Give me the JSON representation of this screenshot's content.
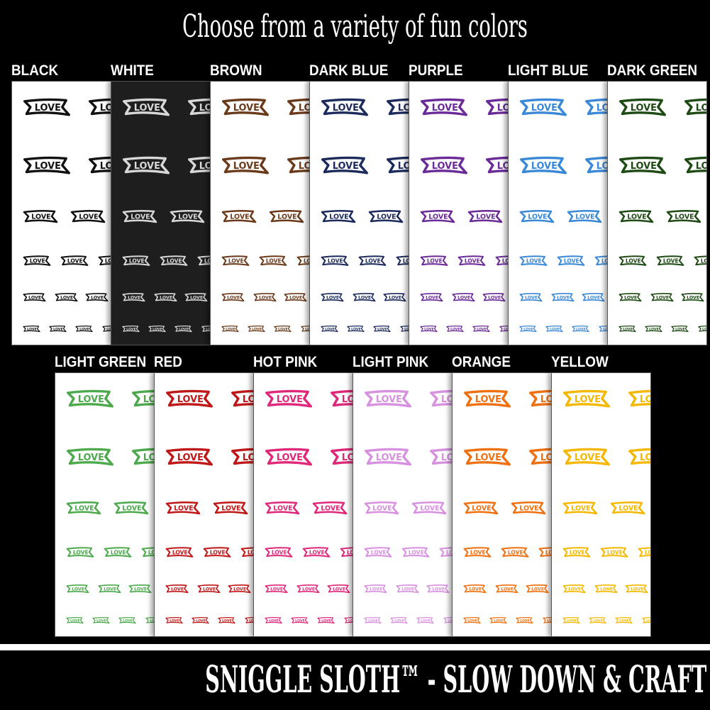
{
  "header": {
    "title": "Choose from a variety of fun colors"
  },
  "banner_text": "LOVE",
  "colors": [
    {
      "label": "BLACK",
      "ink": "#111111",
      "background": "#ffffff"
    },
    {
      "label": "WHITE",
      "ink": "#d8d8d8",
      "background": "#1e1e1e"
    },
    {
      "label": "BROWN",
      "ink": "#6b3a1a",
      "background": "#ffffff"
    },
    {
      "label": "DARK BLUE",
      "ink": "#1c2a5c",
      "background": "#ffffff"
    },
    {
      "label": "PURPLE",
      "ink": "#6a2a98",
      "background": "#ffffff"
    },
    {
      "label": "LIGHT BLUE",
      "ink": "#3a88d8",
      "background": "#ffffff"
    },
    {
      "label": "DARK GREEN",
      "ink": "#1e4a14",
      "background": "#ffffff"
    },
    {
      "label": "LIGHT GREEN",
      "ink": "#4caa4c",
      "background": "#ffffff"
    },
    {
      "label": "RED",
      "ink": "#c01818",
      "background": "#ffffff"
    },
    {
      "label": "HOT PINK",
      "ink": "#e0287a",
      "background": "#ffffff"
    },
    {
      "label": "LIGHT PINK",
      "ink": "#d890e0",
      "background": "#ffffff"
    },
    {
      "label": "ORANGE",
      "ink": "#f07010",
      "background": "#ffffff"
    },
    {
      "label": "YELLOW",
      "ink": "#f5b800",
      "background": "#ffffff"
    }
  ],
  "footer": {
    "text": "SNIGGLE SLOTH™ - SLOW DOWN & CRAFT"
  }
}
